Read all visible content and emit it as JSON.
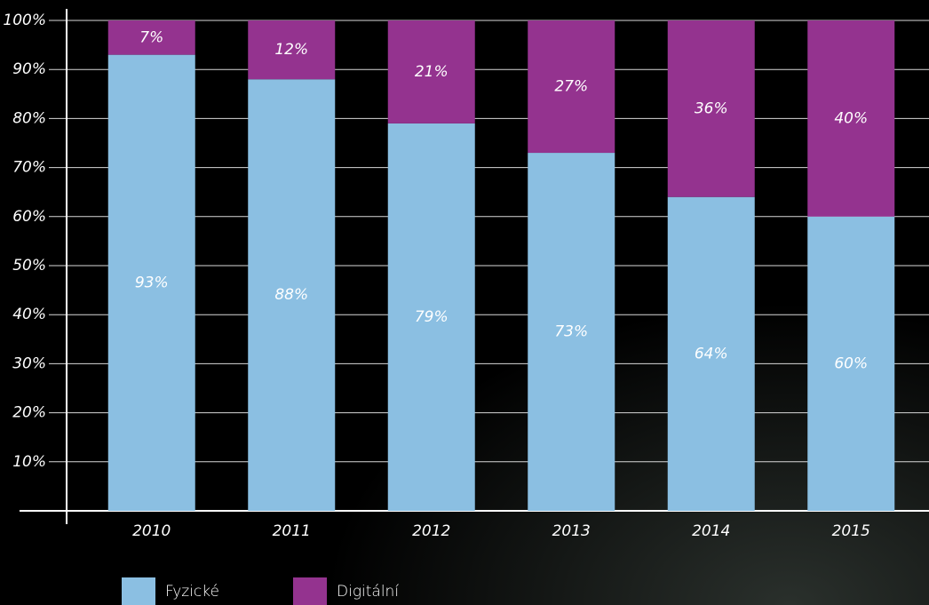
{
  "chart_data": {
    "type": "stacked_bar",
    "categories": [
      "2010",
      "2011",
      "2012",
      "2013",
      "2014",
      "2015"
    ],
    "series": [
      {
        "name": "Fyzické",
        "color": "#8bbfe2",
        "values": [
          93,
          88,
          79,
          73,
          64,
          60
        ],
        "value_labels": [
          "93%",
          "88%",
          "79%",
          "73%",
          "64%",
          "60%"
        ]
      },
      {
        "name": "Digitální",
        "color": "#94338f",
        "values": [
          7,
          12,
          21,
          27,
          36,
          40
        ],
        "value_labels": [
          "7%",
          "12%",
          "21%",
          "27%",
          "36%",
          "40%"
        ]
      }
    ],
    "ylim": [
      0,
      100
    ],
    "yticks": [
      {
        "value": 10,
        "label": "10%"
      },
      {
        "value": 20,
        "label": "20%"
      },
      {
        "value": 30,
        "label": "30%"
      },
      {
        "value": 40,
        "label": "40%"
      },
      {
        "value": 50,
        "label": "50%"
      },
      {
        "value": 60,
        "label": "60%"
      },
      {
        "value": 70,
        "label": "70%"
      },
      {
        "value": 80,
        "label": "80%"
      },
      {
        "value": 90,
        "label": "90%"
      },
      {
        "value": 100,
        "label": "100%"
      }
    ],
    "grid": true,
    "legend": "bottom"
  }
}
